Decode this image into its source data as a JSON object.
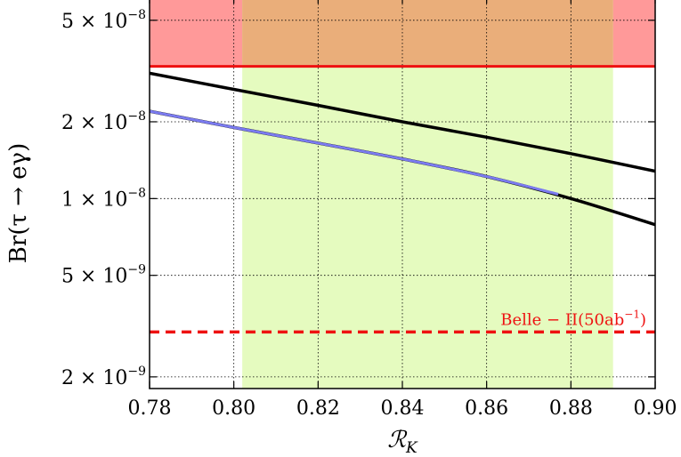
{
  "chart_data": {
    "type": "line",
    "xlabel": "ℛ_K",
    "ylabel": "Br(τ → eγ)",
    "y_scale": "log",
    "xlim": [
      0.78,
      0.9
    ],
    "ylim": [
      1.8e-09,
      6.2e-08
    ],
    "grid": true,
    "x_ticks": [
      {
        "value": 0.78,
        "label": "0.78"
      },
      {
        "value": 0.8,
        "label": "0.80"
      },
      {
        "value": 0.82,
        "label": "0.82"
      },
      {
        "value": 0.84,
        "label": "0.84"
      },
      {
        "value": 0.86,
        "label": "0.86"
      },
      {
        "value": 0.88,
        "label": "0.88"
      },
      {
        "value": 0.9,
        "label": "0.90"
      }
    ],
    "y_ticks": [
      {
        "value": 2e-09,
        "mantissa": "2 × 10",
        "exponent": "−9"
      },
      {
        "value": 5e-09,
        "mantissa": "5 × 10",
        "exponent": "−9"
      },
      {
        "value": 1e-08,
        "mantissa": "1 × 10",
        "exponent": "−8"
      },
      {
        "value": 2e-08,
        "mantissa": "2 × 10",
        "exponent": "−8"
      },
      {
        "value": 5e-08,
        "mantissa": "5 × 10",
        "exponent": "−8"
      }
    ],
    "regions": [
      {
        "kind": "excluded",
        "y_from": 3.3e-08,
        "y_to": 6.2e-08,
        "color": "#ff9999"
      },
      {
        "kind": "allowed-band",
        "x_from": 0.802,
        "x_to": 0.89,
        "color": "#e5fbbf"
      },
      {
        "kind": "overlap",
        "x_from": 0.802,
        "x_to": 0.89,
        "y_from": 3.3e-08,
        "y_to": 6.2e-08,
        "color": "#eaae7a"
      }
    ],
    "reference_lines": [
      {
        "kind": "current-limit",
        "y": 3.3e-08,
        "color": "#ee1111",
        "style": "solid"
      },
      {
        "kind": "future-sensitivity",
        "y": 3e-09,
        "color": "#ee1111",
        "style": "dashed",
        "label": "Belle − II(50ab",
        "label_sup": "−1",
        "label_close": ")"
      }
    ],
    "series": [
      {
        "color": "#000000",
        "x": [
          0.78,
          0.8,
          0.82,
          0.84,
          0.86,
          0.88,
          0.9
        ],
        "y": [
          3.1e-08,
          2.68e-08,
          2.32e-08,
          2e-08,
          1.74e-08,
          1.5e-08,
          1.28e-08
        ]
      },
      {
        "color": "#000000",
        "x": [
          0.78,
          0.8,
          0.82,
          0.84,
          0.86,
          0.88,
          0.9
        ],
        "y": [
          2.2e-08,
          1.9e-08,
          1.65e-08,
          1.43e-08,
          1.22e-08,
          1e-08,
          7.9e-09
        ]
      },
      {
        "color": "#7b7bf0",
        "x": [
          0.78,
          0.8,
          0.82,
          0.84,
          0.86,
          0.877
        ],
        "y": [
          2.2e-08,
          1.9e-08,
          1.65e-08,
          1.43e-08,
          1.22e-08,
          1.04e-08
        ]
      }
    ]
  }
}
